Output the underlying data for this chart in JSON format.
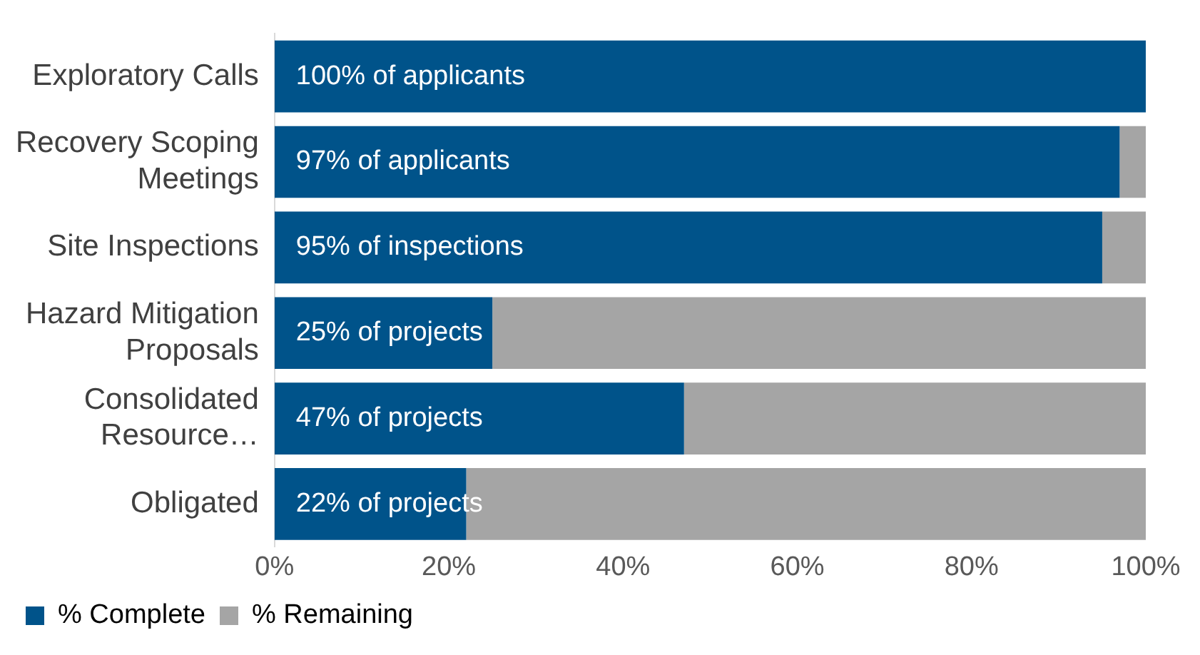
{
  "chart_data": {
    "type": "bar",
    "orientation": "horizontal",
    "stacked": true,
    "categories": [
      "Exploratory Calls",
      "Recovery Scoping Meetings",
      "Site Inspections",
      "Hazard Mitigation Proposals",
      "Consolidated Resource…",
      "Obligated"
    ],
    "series": [
      {
        "name": "% Complete",
        "color": "#00538a",
        "values": [
          100,
          97,
          95,
          25,
          47,
          22
        ],
        "value_labels": [
          "100% of applicants",
          "97% of applicants",
          "95% of inspections",
          "25% of projects",
          "47% of projects",
          "22% of projects"
        ]
      },
      {
        "name": "% Remaining",
        "color": "#a5a5a5",
        "values": [
          0,
          3,
          5,
          75,
          53,
          78
        ]
      }
    ],
    "xlim": [
      0,
      100
    ],
    "xticks": [
      {
        "value": 0,
        "label": "0%"
      },
      {
        "value": 20,
        "label": "20%"
      },
      {
        "value": 40,
        "label": "40%"
      },
      {
        "value": 60,
        "label": "60%"
      },
      {
        "value": 80,
        "label": "80%"
      },
      {
        "value": 100,
        "label": "100%"
      }
    ],
    "grid": false,
    "legend": "bottom left"
  }
}
